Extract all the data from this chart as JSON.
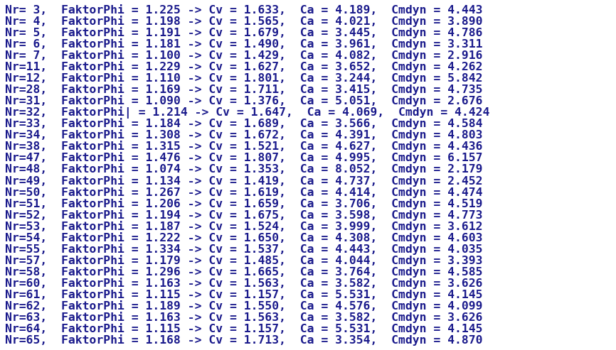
{
  "background_color": "#ffffff",
  "text_color": "#1a1a8c",
  "font_family": "monospace",
  "font_size": 11.8,
  "lines": [
    "Nr= 3,  FaktorPhi = 1.225 -> Cv = 1.633,  Ca = 4.189,  Cmdyn = 4.443",
    "Nr= 4,  FaktorPhi = 1.198 -> Cv = 1.565,  Ca = 4.021,  Cmdyn = 3.890",
    "Nr= 5,  FaktorPhi = 1.191 -> Cv = 1.679,  Ca = 3.445,  Cmdyn = 4.786",
    "Nr= 6,  FaktorPhi = 1.181 -> Cv = 1.490,  Ca = 3.961,  Cmdyn = 3.311",
    "Nr= 7,  FaktorPhi = 1.100 -> Cv = 1.429,  Ca = 4.082,  Cmdyn = 2.916",
    "Nr=11,  FaktorPhi = 1.229 -> Cv = 1.627,  Ca = 3.652,  Cmdyn = 4.262",
    "Nr=12,  FaktorPhi = 1.110 -> Cv = 1.801,  Ca = 3.244,  Cmdyn = 5.842",
    "Nr=28,  FaktorPhi = 1.169 -> Cv = 1.711,  Ca = 3.415,  Cmdyn = 4.735",
    "Nr=31,  FaktorPhi = 1.090 -> Cv = 1.376,  Ca = 5.051,  Cmdyn = 2.676",
    "Nr=32,  FaktorPhi| = 1.214 -> Cv = 1.647,  Ca = 4.069,  Cmdyn = 4.424",
    "Nr=33,  FaktorPhi = 1.184 -> Cv = 1.689,  Ca = 3.566,  Cmdyn = 4.584",
    "Nr=34,  FaktorPhi = 1.308 -> Cv = 1.672,  Ca = 4.391,  Cmdyn = 4.803",
    "Nr=38,  FaktorPhi = 1.315 -> Cv = 1.521,  Ca = 4.627,  Cmdyn = 4.436",
    "Nr=47,  FaktorPhi = 1.476 -> Cv = 1.807,  Ca = 4.995,  Cmdyn = 6.157",
    "Nr=48,  FaktorPhi = 1.074 -> Cv = 1.353,  Ca = 8.052,  Cmdyn = 2.179",
    "Nr=49,  FaktorPhi = 1.134 -> Cv = 1.419,  Ca = 4.737,  Cmdyn = 2.452",
    "Nr=50,  FaktorPhi = 1.267 -> Cv = 1.619,  Ca = 4.414,  Cmdyn = 4.474",
    "Nr=51,  FaktorPhi = 1.206 -> Cv = 1.659,  Ca = 3.706,  Cmdyn = 4.519",
    "Nr=52,  FaktorPhi = 1.194 -> Cv = 1.675,  Ca = 3.598,  Cmdyn = 4.773",
    "Nr=53,  FaktorPhi = 1.187 -> Cv = 1.524,  Ca = 3.999,  Cmdyn = 3.612",
    "Nr=54,  FaktorPhi = 1.222 -> Cv = 1.650,  Ca = 4.308,  Cmdyn = 4.603",
    "Nr=55,  FaktorPhi = 1.334 -> Cv = 1.537,  Ca = 4.443,  Cmdyn = 4.035",
    "Nr=57,  FaktorPhi = 1.179 -> Cv = 1.485,  Ca = 4.044,  Cmdyn = 3.393",
    "Nr=58,  FaktorPhi = 1.296 -> Cv = 1.665,  Ca = 3.764,  Cmdyn = 4.585",
    "Nr=60,  FaktorPhi = 1.163 -> Cv = 1.563,  Ca = 3.582,  Cmdyn = 3.626",
    "Nr=61,  FaktorPhi = 1.115 -> Cv = 1.157,  Ca = 5.531,  Cmdyn = 4.145",
    "Nr=62,  FaktorPhi = 1.189 -> Cv = 1.550,  Ca = 4.576,  Cmdyn = 4.099",
    "Nr=63,  FaktorPhi = 1.163 -> Cv = 1.563,  Ca = 3.582,  Cmdyn = 3.626",
    "Nr=64,  FaktorPhi = 1.115 -> Cv = 1.157,  Ca = 5.531,  Cmdyn = 4.145",
    "Nr=65,  FaktorPhi = 1.168 -> Cv = 1.713,  Ca = 3.354,  Cmdyn = 4.870"
  ]
}
